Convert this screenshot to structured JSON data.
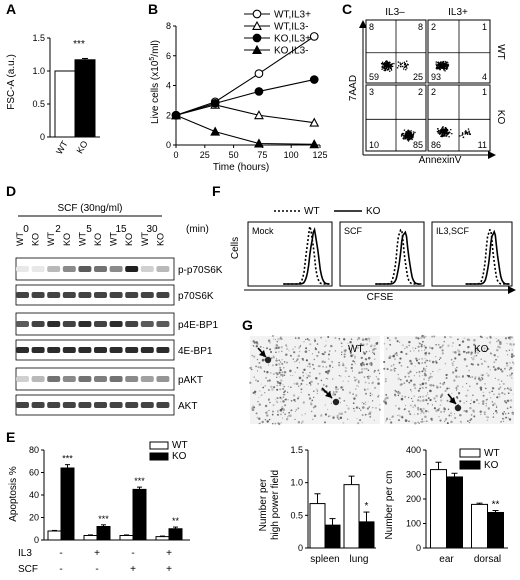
{
  "panels": {
    "A": {
      "letter": "A",
      "chart_data": {
        "type": "bar",
        "categories": [
          "WT",
          "KO"
        ],
        "values": [
          1.0,
          1.17
        ],
        "errors": [
          0,
          0.02
        ],
        "colors": [
          "#ffffff",
          "#000000"
        ],
        "ylabel": "FSC-A (a.u.)",
        "ylim": [
          0,
          1.5
        ],
        "yticks": [
          0,
          0.5,
          1.0,
          1.5
        ],
        "ytick_labels": [
          "0",
          "0.5",
          "1.0",
          "1.5"
        ],
        "annotation": "***"
      }
    },
    "B": {
      "letter": "B",
      "chart_data": {
        "type": "line",
        "xlabel": "Time (hours)",
        "ylabel": "Live cells (x10",
        "ylabel_sup": "5",
        "ylabel_suffix": "/ml)",
        "xlim": [
          0,
          125
        ],
        "ylim": [
          0,
          8
        ],
        "xticks": [
          0,
          25,
          50,
          75,
          100,
          125
        ],
        "yticks": [
          0,
          2,
          4,
          6,
          8
        ],
        "series": [
          {
            "name": "WT,IL3+",
            "marker": "circle-open",
            "x": [
              0,
              34,
              72,
              120
            ],
            "y": [
              2.0,
              2.9,
              4.8,
              7.3
            ]
          },
          {
            "name": "WT,IL3-",
            "marker": "triangle-open",
            "x": [
              0,
              34,
              72,
              120
            ],
            "y": [
              2.0,
              2.7,
              2.0,
              1.5
            ]
          },
          {
            "name": "KO,IL3+",
            "marker": "circle-filled",
            "x": [
              0,
              34,
              72,
              120
            ],
            "y": [
              2.0,
              2.8,
              3.6,
              4.4
            ]
          },
          {
            "name": "KO,IL3-",
            "marker": "triangle-filled",
            "x": [
              0,
              34,
              72,
              120
            ],
            "y": [
              2.0,
              0.9,
              0.1,
              0.05
            ]
          }
        ]
      }
    },
    "C": {
      "letter": "C",
      "col_labels": [
        "IL3–",
        "IL3+"
      ],
      "row_labels": [
        "WT",
        "KO"
      ],
      "ylabel": "7AAD",
      "xlabel": "AnnexinV",
      "quadrants": [
        {
          "row": "WT",
          "col": "IL3-",
          "tl": "8",
          "tr": "8",
          "bl": "59",
          "br": "25"
        },
        {
          "row": "WT",
          "col": "IL3+",
          "tl": "2",
          "tr": "1",
          "bl": "93",
          "br": "4"
        },
        {
          "row": "KO",
          "col": "IL3-",
          "tl": "3",
          "tr": "2",
          "bl": "10",
          "br": "85"
        },
        {
          "row": "KO",
          "col": "IL3+",
          "tl": "2",
          "tr": "1",
          "bl": "86",
          "br": "11"
        }
      ]
    },
    "D": {
      "letter": "D",
      "treatment": "SCF (30ng/ml)",
      "timepoints": [
        "0",
        "2",
        "5",
        "15",
        "30"
      ],
      "unit": "(min)",
      "genotypes": [
        "WT",
        "KO"
      ],
      "blots": [
        "p-p70S6K",
        "p70S6K",
        "p4E-BP1",
        "4E-BP1",
        "pAKT",
        "AKT"
      ]
    },
    "E": {
      "letter": "E",
      "chart_data": {
        "type": "bar",
        "ylabel": "Apoptosis %",
        "ylim": [
          0,
          80
        ],
        "yticks": [
          0,
          20,
          40,
          60,
          80
        ],
        "condition_labels": [
          "IL3",
          "SCF"
        ],
        "conditions": [
          {
            "IL3": "-",
            "SCF": "-"
          },
          {
            "IL3": "+",
            "SCF": "-"
          },
          {
            "IL3": "-",
            "SCF": "+"
          },
          {
            "IL3": "+",
            "SCF": "+"
          }
        ],
        "series": [
          {
            "name": "WT",
            "color": "#ffffff",
            "values": [
              8,
              4,
              4,
              3
            ],
            "errors": [
              0.5,
              0.5,
              0.5,
              0.5
            ]
          },
          {
            "name": "KO",
            "color": "#000000",
            "values": [
              64,
              12,
              45,
              10
            ],
            "errors": [
              3,
              1.5,
              2,
              1.5
            ]
          }
        ],
        "annotations": [
          "***",
          "***",
          "***",
          "**"
        ],
        "legend_position": "top-right"
      }
    },
    "F": {
      "letter": "F",
      "legend": [
        "WT",
        "KO"
      ],
      "ylabel": "Cells",
      "xlabel": "CFSE",
      "conditions": [
        "Mock",
        "SCF",
        "IL3,SCF"
      ]
    },
    "G": {
      "letter": "G",
      "image_labels": [
        "WT",
        "KO"
      ],
      "chart_data": [
        {
          "type": "bar",
          "ylabel": "Number per high power field",
          "ylim": [
            0,
            1.5
          ],
          "yticks": [
            0,
            0.5,
            1.0,
            1.5
          ],
          "ytick_labels": [
            "0",
            "0.5",
            "1.0",
            "1.5"
          ],
          "categories": [
            "spleen",
            "lung"
          ],
          "series": [
            {
              "name": "WT",
              "color": "#ffffff",
              "values": [
                0.68,
                0.97
              ],
              "errors": [
                0.15,
                0.13
              ]
            },
            {
              "name": "KO",
              "color": "#000000",
              "values": [
                0.35,
                0.4
              ],
              "errors": [
                0.1,
                0.15
              ]
            }
          ],
          "annotations": [
            "",
            "*"
          ]
        },
        {
          "type": "bar",
          "ylabel": "Number per cm",
          "ylim": [
            0,
            400
          ],
          "yticks": [
            0,
            100,
            200,
            300,
            400
          ],
          "categories": [
            "ear",
            "dorsal"
          ],
          "series": [
            {
              "name": "WT",
              "color": "#ffffff",
              "values": [
                320,
                178
              ],
              "errors": [
                30,
                5
              ]
            },
            {
              "name": "KO",
              "color": "#000000",
              "values": [
                290,
                145
              ],
              "errors": [
                15,
                8
              ]
            }
          ],
          "annotations": [
            "",
            "**"
          ],
          "legend_position": "top-right"
        }
      ]
    }
  }
}
